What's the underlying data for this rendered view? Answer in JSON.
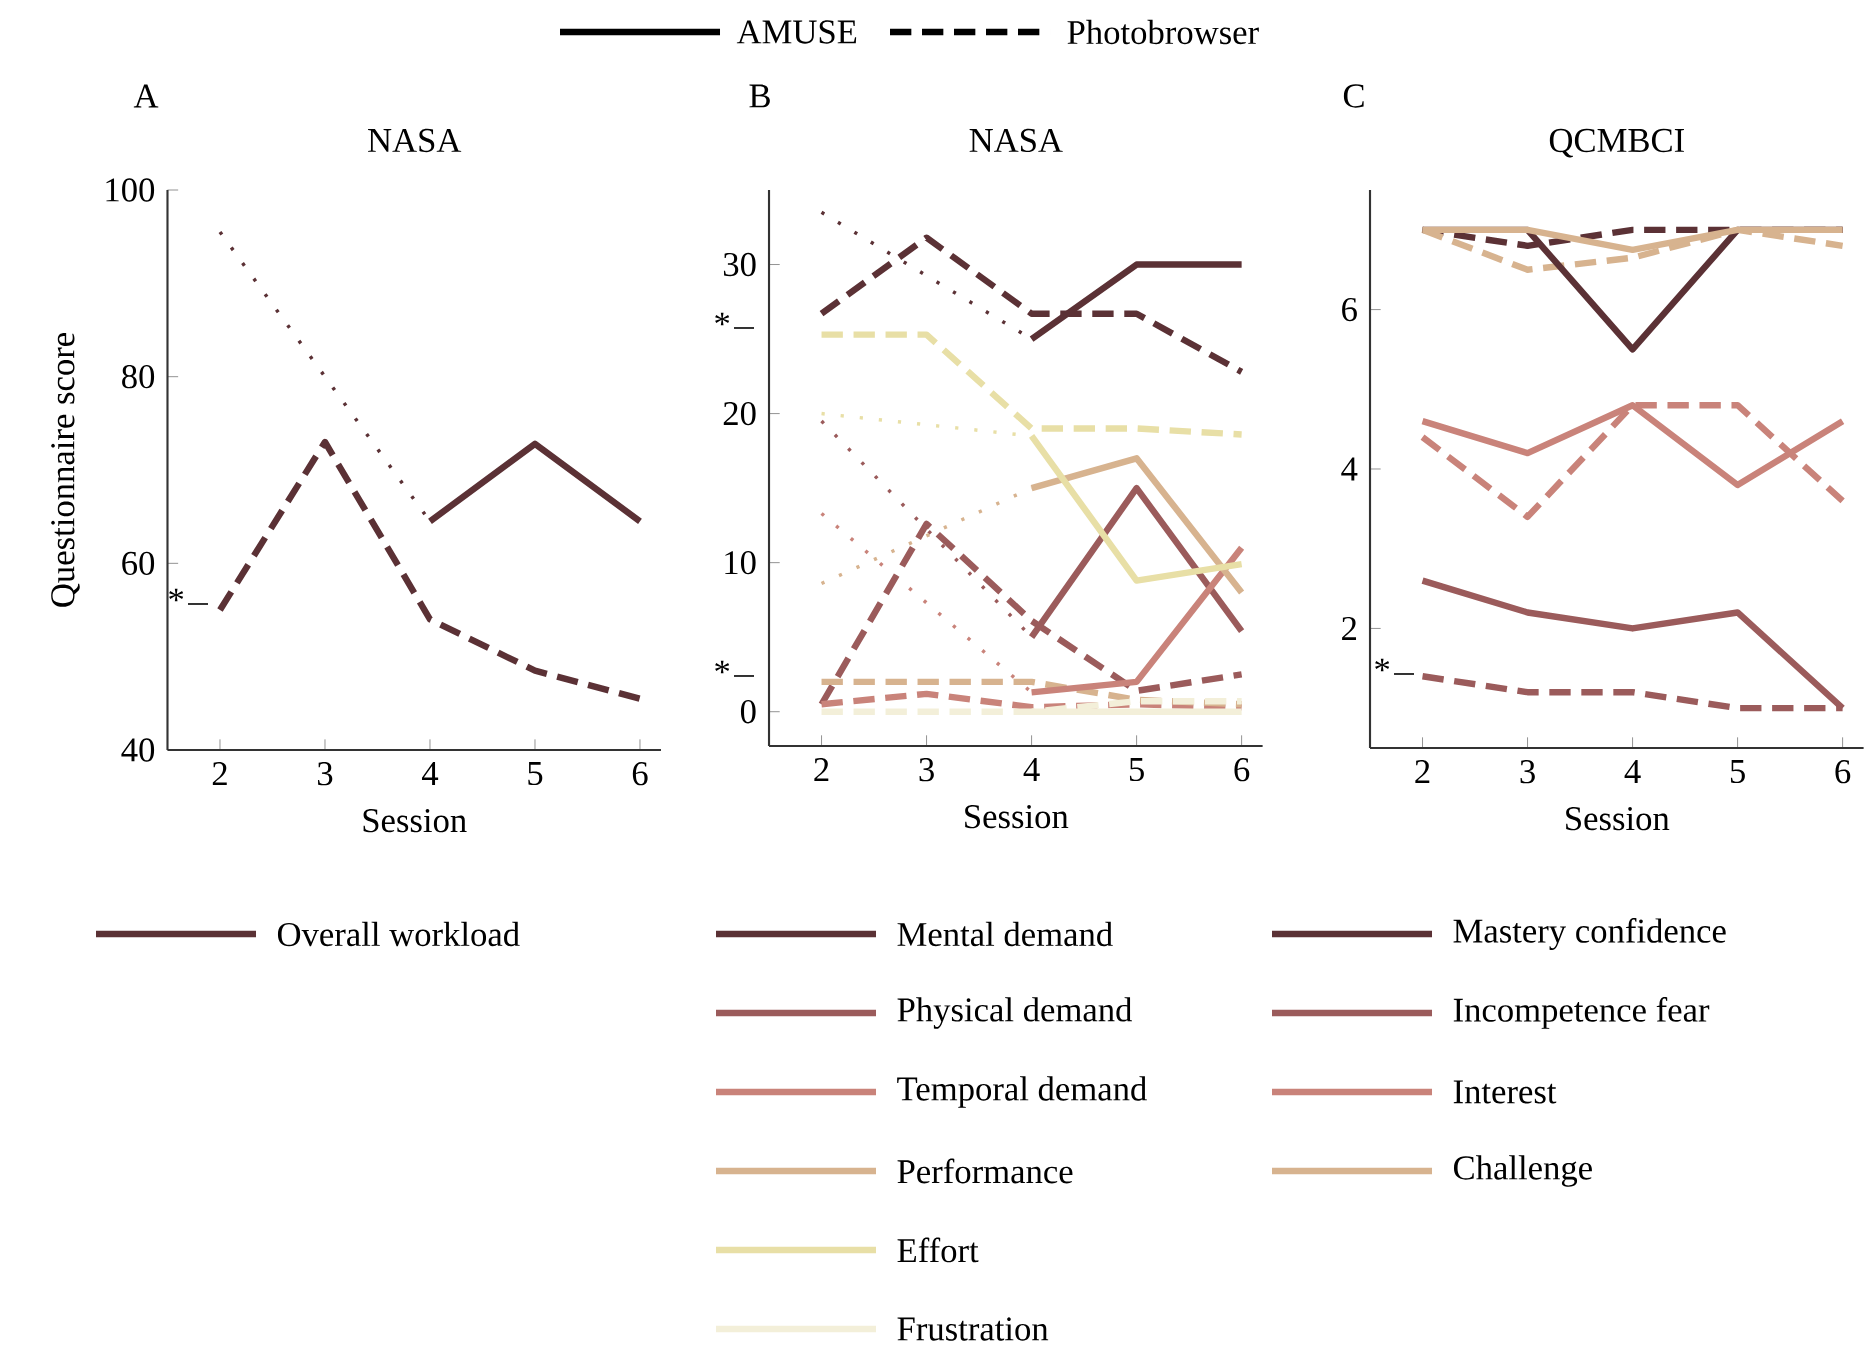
{
  "chart_data": [
    {
      "type": "line",
      "title": "NASA",
      "xlabel": "Session",
      "ylabel": "Questionnaire score",
      "xlim": [
        1.5,
        6.2
      ],
      "xticks": [
        2,
        3,
        4,
        5,
        6
      ],
      "ylim": [
        40,
        100
      ],
      "yticks": [
        40,
        60,
        80,
        100
      ],
      "legend": "bottom",
      "annotations": [
        "A",
        "*"
      ],
      "series": [
        {
          "color": "#5b3135",
          "line_style": "dotted",
          "x": [
            2,
            4
          ],
          "values": [
            95.5,
            64.5
          ]
        },
        {
          "name": "Overall workload",
          "color": "#5b3135",
          "line_style": "solid",
          "x": [
            4,
            5,
            6
          ],
          "values": [
            64.5,
            72.8,
            64.5
          ]
        },
        {
          "color": "#5b3135",
          "line_style": "dashed",
          "x": [
            2,
            3,
            4,
            5,
            6
          ],
          "values": [
            55,
            73,
            54,
            48.5,
            45.5
          ]
        }
      ]
    },
    {
      "type": "line",
      "title": "NASA",
      "xlabel": "Session",
      "xlim": [
        1.5,
        6.2
      ],
      "xticks": [
        2,
        3,
        4,
        5,
        6
      ],
      "ylim": [
        -2.3,
        35
      ],
      "yticks": [
        0,
        10,
        20,
        30
      ],
      "legend": "bottom",
      "annotations": [
        "B",
        "AMUSE",
        "Photobrowser",
        "*",
        "*"
      ],
      "series": [
        {
          "color": "#5b3135",
          "line_style": "dotted",
          "x": [
            2,
            4
          ],
          "values": [
            33.5,
            25
          ]
        },
        {
          "color": "#9b5b5b",
          "line_style": "dotted",
          "x": [
            2,
            4
          ],
          "values": [
            19.5,
            5
          ]
        },
        {
          "color": "#c9837a",
          "line_style": "dotted",
          "x": [
            2,
            4
          ],
          "values": [
            13.3,
            1.3
          ]
        },
        {
          "color": "#d7b38f",
          "line_style": "dotted",
          "x": [
            2,
            4
          ],
          "values": [
            8.6,
            15
          ]
        },
        {
          "color": "#e8dfa6",
          "line_style": "dotted",
          "x": [
            2,
            4
          ],
          "values": [
            20,
            18.5
          ]
        },
        {
          "color": "#5b3135",
          "line_style": "dashed",
          "x": [
            2,
            3,
            4,
            5,
            6
          ],
          "values": [
            26.7,
            31.8,
            26.7,
            26.7,
            22.8
          ]
        },
        {
          "color": "#9b5b5b",
          "line_style": "dashed",
          "x": [
            2,
            3,
            4,
            5,
            6
          ],
          "values": [
            0.5,
            12.6,
            6.1,
            1.4,
            2.5
          ]
        },
        {
          "color": "#c9837a",
          "line_style": "dashed",
          "x": [
            2,
            3,
            4,
            5,
            6
          ],
          "values": [
            0.5,
            1.2,
            0.3,
            0.5,
            0.3
          ]
        },
        {
          "color": "#d7b38f",
          "line_style": "dashed",
          "x": [
            2,
            3,
            4,
            5,
            6
          ],
          "values": [
            2,
            2,
            2,
            0.8,
            0.5
          ]
        },
        {
          "color": "#e8dfa6",
          "line_style": "dashed",
          "x": [
            2,
            3,
            4,
            5,
            6
          ],
          "values": [
            25.3,
            25.3,
            19,
            19,
            18.6
          ]
        },
        {
          "color": "#f3efd9",
          "line_style": "dashed",
          "x": [
            2,
            3,
            4,
            5,
            6
          ],
          "values": [
            0,
            0,
            0,
            0.7,
            0.7
          ]
        },
        {
          "name": "Mental demand",
          "color": "#5b3135",
          "line_style": "solid",
          "x": [
            4,
            5,
            6
          ],
          "values": [
            25,
            30,
            30
          ]
        },
        {
          "name": "Physical demand",
          "color": "#9b5b5b",
          "line_style": "solid",
          "x": [
            4,
            5,
            6
          ],
          "values": [
            5,
            15,
            5.4
          ]
        },
        {
          "name": "Temporal demand",
          "color": "#c9837a",
          "line_style": "solid",
          "x": [
            4,
            5,
            6
          ],
          "values": [
            1.3,
            2,
            11
          ]
        },
        {
          "name": "Performance",
          "color": "#d7b38f",
          "line_style": "solid",
          "x": [
            4,
            5,
            6
          ],
          "values": [
            15,
            17,
            8
          ]
        },
        {
          "name": "Effort",
          "color": "#e8dfa6",
          "line_style": "solid",
          "x": [
            4,
            5,
            6
          ],
          "values": [
            18.5,
            8.8,
            9.9
          ]
        },
        {
          "name": "Frustration",
          "color": "#f3efd9",
          "line_style": "solid",
          "x": [
            4,
            5,
            6
          ],
          "values": [
            0,
            0,
            0
          ]
        }
      ]
    },
    {
      "type": "line",
      "title": "QCMBCI",
      "xlabel": "Session",
      "xlim": [
        1.5,
        6.2
      ],
      "xticks": [
        2,
        3,
        4,
        5,
        6
      ],
      "ylim": [
        0.5,
        7.5
      ],
      "yticks": [
        2,
        4,
        6
      ],
      "legend": "bottom",
      "annotations": [
        "C",
        "*"
      ],
      "series": [
        {
          "color": "#5b3135",
          "line_style": "dashed",
          "x": [
            2,
            3,
            4,
            5,
            6
          ],
          "values": [
            7,
            6.8,
            7,
            7,
            7
          ]
        },
        {
          "color": "#9b5b5b",
          "line_style": "dashed",
          "x": [
            2,
            3,
            4,
            5,
            6
          ],
          "values": [
            1.4,
            1.2,
            1.2,
            1,
            1
          ]
        },
        {
          "color": "#c9837a",
          "line_style": "dashed",
          "x": [
            2,
            3,
            4,
            5,
            6
          ],
          "values": [
            4.4,
            3.4,
            4.8,
            4.8,
            3.6
          ]
        },
        {
          "color": "#d7b38f",
          "line_style": "dashed",
          "x": [
            2,
            3,
            4,
            5,
            6
          ],
          "values": [
            7,
            6.5,
            6.65,
            7,
            6.8
          ]
        },
        {
          "name": "Mastery confidence",
          "color": "#5b3135",
          "line_style": "solid",
          "x": [
            2,
            3,
            4,
            5,
            6
          ],
          "values": [
            7,
            7,
            5.5,
            7,
            7
          ]
        },
        {
          "name": "Incompetence fear",
          "color": "#9b5b5b",
          "line_style": "solid",
          "x": [
            2,
            3,
            4,
            5,
            6
          ],
          "values": [
            2.6,
            2.2,
            2,
            2.2,
            1
          ]
        },
        {
          "name": "Interest",
          "color": "#c9837a",
          "line_style": "solid",
          "x": [
            2,
            3,
            4,
            5,
            6
          ],
          "values": [
            4.6,
            4.2,
            4.8,
            3.8,
            4.6
          ]
        },
        {
          "name": "Challenge",
          "color": "#d7b38f",
          "line_style": "solid",
          "x": [
            2,
            3,
            4,
            5,
            6
          ],
          "values": [
            7,
            7,
            6.75,
            7,
            7
          ]
        }
      ]
    }
  ]
}
